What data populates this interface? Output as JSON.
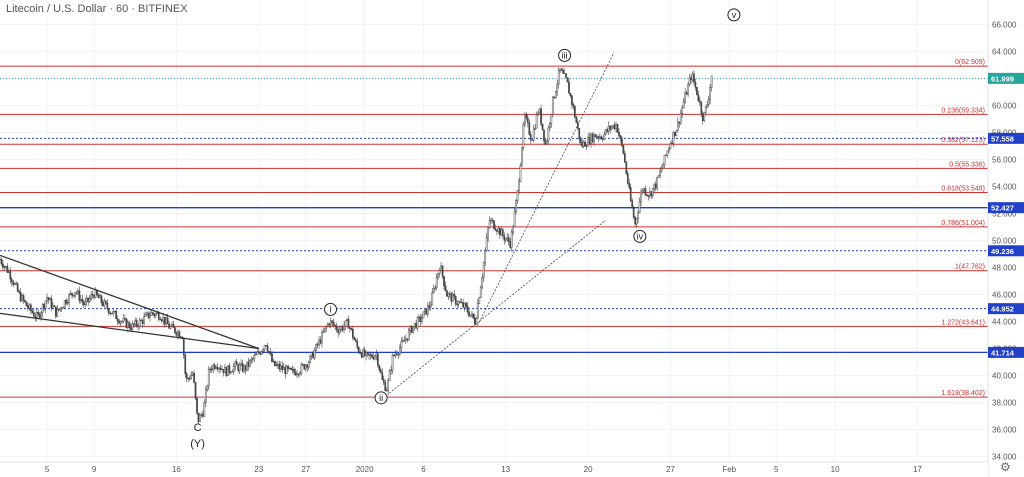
{
  "header": {
    "title": "Litecoin / U.S. Dollar · 60 · BITFINEX"
  },
  "colors": {
    "up": "#26a69a",
    "down": "#ef5350",
    "candle": "#444444",
    "fib": "#d32f2f",
    "blue_level": "#1a3fd4",
    "trend": "#333333",
    "tag_blue": "#2340c8",
    "tag_teal": "#26a69a"
  },
  "icons": {
    "settings": "gear-icon"
  },
  "chart_data": {
    "type": "candlestick",
    "symbol": "Litecoin / U.S. Dollar",
    "interval": "60",
    "exchange": "BITFINEX",
    "ylim": [
      33.6,
      67.8
    ],
    "y_ticks": [
      34,
      36,
      38,
      40,
      42,
      44,
      46,
      48,
      50,
      52,
      54,
      56,
      58,
      60,
      62,
      64,
      66
    ],
    "y_tick_labels": [
      "34.000",
      "36.000",
      "38.000",
      "40.000",
      "42.000",
      "44.000",
      "46.000",
      "48.000",
      "50.000",
      "52.000",
      "54.000",
      "56.000",
      "58.000",
      "60.000",
      "62.000",
      "64.000",
      "66.000"
    ],
    "x_ticks": [
      {
        "label": "5",
        "t": 4
      },
      {
        "label": "9",
        "t": 8
      },
      {
        "label": "16",
        "t": 15
      },
      {
        "label": "23",
        "t": 22
      },
      {
        "label": "27",
        "t": 26
      },
      {
        "label": "2020",
        "t": 31
      },
      {
        "label": "6",
        "t": 36
      },
      {
        "label": "13",
        "t": 43
      },
      {
        "label": "20",
        "t": 50
      },
      {
        "label": "27",
        "t": 57
      },
      {
        "label": "Feb",
        "t": 62
      },
      {
        "label": "5",
        "t": 66
      },
      {
        "label": "10",
        "t": 71
      },
      {
        "label": "17",
        "t": 78
      }
    ],
    "fib_levels": [
      {
        "ratio": "0",
        "value": 62.909,
        "label": "0(62.909)"
      },
      {
        "ratio": "0.236",
        "value": 59.334,
        "label": "0.236(59.334)"
      },
      {
        "ratio": "0.382",
        "value": 57.123,
        "label": "0.382(57.123)"
      },
      {
        "ratio": "0.5",
        "value": 55.336,
        "label": "0.5(55.336)"
      },
      {
        "ratio": "0.618",
        "value": 53.548,
        "label": "0.618(53.548)"
      },
      {
        "ratio": "0.786",
        "value": 51.004,
        "label": "0.786(51.004)"
      },
      {
        "ratio": "1",
        "value": 47.762,
        "label": "1(47.762)"
      },
      {
        "ratio": "1.272",
        "value": 43.641,
        "label": "1.272(43.641)"
      },
      {
        "ratio": "1.618",
        "value": 38.402,
        "label": "1.618(38.402)"
      }
    ],
    "price_tags": [
      {
        "value": 61.999,
        "label": "61.999",
        "style": "teal"
      },
      {
        "value": 57.558,
        "label": "57.558",
        "style": "blue_dotted"
      },
      {
        "value": 52.427,
        "label": "52.427",
        "style": "blue_solid"
      },
      {
        "value": 49.236,
        "label": "49.236",
        "style": "blue_dotted"
      },
      {
        "value": 44.952,
        "label": "44.952",
        "style": "blue_dotted"
      },
      {
        "value": 41.714,
        "label": "41.714",
        "style": "blue_solid"
      }
    ],
    "trendlines": [
      {
        "from": [
          0,
          48.9
        ],
        "to": [
          22,
          42.0
        ]
      },
      {
        "from": [
          0,
          44.6
        ],
        "to": [
          22,
          42.0
        ]
      },
      {
        "from": [
          40.6,
          43.7
        ],
        "to": [
          52.2,
          63.9
        ]
      },
      {
        "from": [
          33.1,
          38.7
        ],
        "to": [
          51.5,
          51.5
        ]
      }
    ],
    "wave_labels": [
      {
        "text": "i",
        "t": 28.1,
        "value": 44.9,
        "circled": true
      },
      {
        "text": "ii",
        "t": 32.4,
        "value": 38.35,
        "circled": true
      },
      {
        "text": "iii",
        "t": 48.0,
        "value": 63.7,
        "circled": true
      },
      {
        "text": "iv",
        "t": 54.4,
        "value": 50.3,
        "circled": true
      },
      {
        "text": "v",
        "t": 62.4,
        "value": 66.7,
        "circled": true
      },
      {
        "text": "C",
        "t": 16.8,
        "value": 36.2,
        "circled": false
      },
      {
        "text": "(Y)",
        "t": 16.8,
        "value": 35.0,
        "circled": false
      }
    ],
    "price_path": [
      [
        0,
        48.6
      ],
      [
        0.8,
        47.6
      ],
      [
        1.6,
        46.0
      ],
      [
        2.4,
        45.0
      ],
      [
        3.2,
        44.3
      ],
      [
        4.0,
        45.8
      ],
      [
        4.8,
        44.6
      ],
      [
        5.6,
        45.6
      ],
      [
        6.4,
        46.3
      ],
      [
        7.2,
        45.2
      ],
      [
        8.0,
        46.1
      ],
      [
        8.8,
        45.3
      ],
      [
        9.6,
        44.6
      ],
      [
        10.4,
        44.0
      ],
      [
        11.2,
        43.6
      ],
      [
        12.0,
        44.0
      ],
      [
        12.8,
        44.6
      ],
      [
        13.6,
        44.5
      ],
      [
        14.4,
        43.6
      ],
      [
        15.0,
        43.3
      ],
      [
        15.5,
        43.0
      ],
      [
        15.8,
        39.6
      ],
      [
        16.4,
        40.2
      ],
      [
        16.8,
        36.6
      ],
      [
        17.3,
        37.4
      ],
      [
        17.8,
        40.5
      ],
      [
        18.4,
        40.9
      ],
      [
        19.2,
        40.3
      ],
      [
        20.0,
        40.7
      ],
      [
        20.8,
        40.5
      ],
      [
        21.6,
        41.3
      ],
      [
        22.2,
        41.9
      ],
      [
        22.6,
        42.5
      ],
      [
        23.2,
        40.8
      ],
      [
        24.0,
        40.5
      ],
      [
        24.8,
        40.2
      ],
      [
        25.6,
        40.5
      ],
      [
        26.4,
        41.2
      ],
      [
        27.2,
        42.6
      ],
      [
        28.0,
        44.0
      ],
      [
        28.8,
        43.4
      ],
      [
        29.6,
        43.9
      ],
      [
        30.4,
        42.0
      ],
      [
        31.2,
        41.3
      ],
      [
        32.0,
        41.6
      ],
      [
        32.5,
        39.6
      ],
      [
        32.9,
        39.0
      ],
      [
        33.4,
        41.4
      ],
      [
        34.2,
        42.3
      ],
      [
        35.0,
        43.5
      ],
      [
        35.8,
        44.2
      ],
      [
        36.6,
        45.3
      ],
      [
        37.4,
        48.2
      ],
      [
        38.0,
        46.0
      ],
      [
        38.8,
        45.5
      ],
      [
        39.6,
        45.0
      ],
      [
        40.4,
        44.0
      ],
      [
        41.0,
        47.5
      ],
      [
        41.6,
        51.5
      ],
      [
        42.2,
        51.0
      ],
      [
        42.8,
        50.3
      ],
      [
        43.4,
        49.8
      ],
      [
        44.0,
        53.5
      ],
      [
        44.6,
        59.2
      ],
      [
        45.2,
        57.5
      ],
      [
        45.8,
        59.8
      ],
      [
        46.4,
        57.0
      ],
      [
        47.0,
        60.3
      ],
      [
        47.6,
        62.6
      ],
      [
        48.2,
        61.7
      ],
      [
        48.8,
        59.6
      ],
      [
        49.4,
        57.0
      ],
      [
        50.0,
        57.4
      ],
      [
        50.6,
        57.8
      ],
      [
        51.2,
        57.7
      ],
      [
        51.8,
        58.3
      ],
      [
        52.4,
        58.6
      ],
      [
        53.0,
        56.5
      ],
      [
        53.6,
        53.0
      ],
      [
        54.0,
        51.2
      ],
      [
        54.6,
        53.9
      ],
      [
        55.2,
        53.4
      ],
      [
        55.8,
        54.2
      ],
      [
        56.4,
        55.7
      ],
      [
        57.0,
        57.3
      ],
      [
        57.6,
        58.5
      ],
      [
        58.2,
        60.5
      ],
      [
        58.8,
        62.3
      ],
      [
        59.4,
        60.5
      ],
      [
        59.8,
        59.0
      ],
      [
        60.2,
        60.4
      ],
      [
        60.6,
        62.8
      ]
    ]
  }
}
